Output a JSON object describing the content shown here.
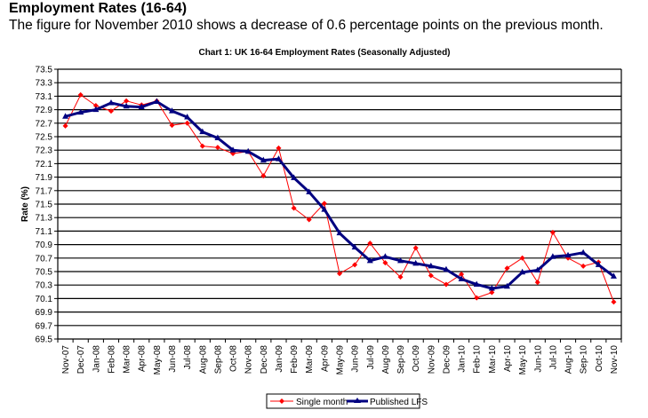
{
  "header": {
    "title": "Employment Rates (16-64)",
    "subtitle": "The figure for November 2010 shows a decrease of 0.6 percentage points on the previous month."
  },
  "chart_data": {
    "type": "line",
    "title": "Chart 1: UK 16-64 Employment Rates (Seasonally Adjusted)",
    "xlabel": "",
    "ylabel": "Rate (%)",
    "ylim": [
      69.5,
      73.5
    ],
    "ytick_step": 0.2,
    "yticks": [
      "73.5",
      "73.3",
      "73.1",
      "72.9",
      "72.7",
      "72.5",
      "72.3",
      "72.1",
      "71.9",
      "71.7",
      "71.5",
      "71.3",
      "71.1",
      "70.9",
      "70.7",
      "70.5",
      "70.3",
      "70.1",
      "69.9",
      "69.7",
      "69.5"
    ],
    "grid": true,
    "legend_position": "bottom-center",
    "categories": [
      "Nov-07",
      "Dec-07",
      "Jan-08",
      "Feb-08",
      "Mar-08",
      "Apr-08",
      "May-08",
      "Jun-08",
      "Jul-08",
      "Aug-08",
      "Sep-08",
      "Oct-08",
      "Nov-08",
      "Dec-08",
      "Jan-09",
      "Feb-09",
      "Mar-09",
      "Apr-09",
      "May-09",
      "Jun-09",
      "Jul-09",
      "Aug-09",
      "Sep-09",
      "Oct-09",
      "Nov-09",
      "Dec-09",
      "Jan-10",
      "Feb-10",
      "Mar-10",
      "Apr-10",
      "May-10",
      "Jun-10",
      "Jul-10",
      "Aug-10",
      "Sep-10",
      "Oct-10",
      "Nov-10"
    ],
    "series": [
      {
        "name": "Single month",
        "color": "#ff0000",
        "marker": "diamond",
        "values": [
          72.66,
          73.12,
          72.96,
          72.88,
          73.03,
          72.97,
          73.03,
          72.67,
          72.7,
          72.36,
          72.34,
          72.25,
          72.28,
          71.92,
          72.33,
          71.44,
          71.27,
          71.51,
          70.47,
          70.6,
          70.92,
          70.63,
          70.42,
          70.85,
          70.44,
          70.31,
          70.46,
          70.11,
          70.19,
          70.55,
          70.7,
          70.34,
          71.08,
          70.7,
          70.58,
          70.64,
          70.05
        ]
      },
      {
        "name": "Published LFS",
        "color": "#000080",
        "marker": "triangle",
        "values": [
          72.8,
          72.86,
          72.9,
          73.0,
          72.95,
          72.94,
          73.02,
          72.88,
          72.79,
          72.57,
          72.48,
          72.3,
          72.28,
          72.15,
          72.17,
          71.89,
          71.68,
          71.42,
          71.07,
          70.86,
          70.66,
          70.72,
          70.66,
          70.62,
          70.58,
          70.53,
          70.39,
          70.31,
          70.25,
          70.28,
          70.49,
          70.52,
          70.72,
          70.74,
          70.78,
          70.6,
          70.43
        ]
      }
    ]
  }
}
